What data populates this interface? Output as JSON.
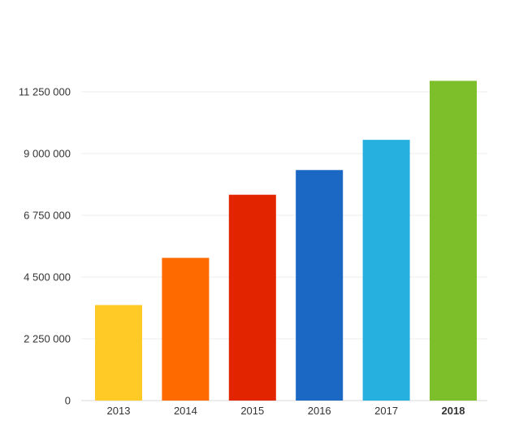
{
  "chart_data": {
    "type": "bar",
    "title": "",
    "xlabel": "",
    "ylabel": "",
    "categories": [
      "2013",
      "2014",
      "2015",
      "2016",
      "2017",
      "2018"
    ],
    "values": [
      3480000,
      5200000,
      7500000,
      8400000,
      9500000,
      11650000
    ],
    "colors": [
      "#FFC926",
      "#FF6A00",
      "#E32400",
      "#1B67C4",
      "#26B0E0",
      "#7CBF2B"
    ],
    "bold_categories": [
      "2018"
    ],
    "ylim": [
      0,
      11250000
    ],
    "yticks": [
      0,
      2250000,
      4500000,
      6750000,
      9000000,
      11250000
    ],
    "ytick_labels": [
      "0",
      "2 250 000",
      "4 500 000",
      "6 750 000",
      "9 000 000",
      "11 250 000"
    ],
    "grid": true,
    "legend": "none"
  }
}
